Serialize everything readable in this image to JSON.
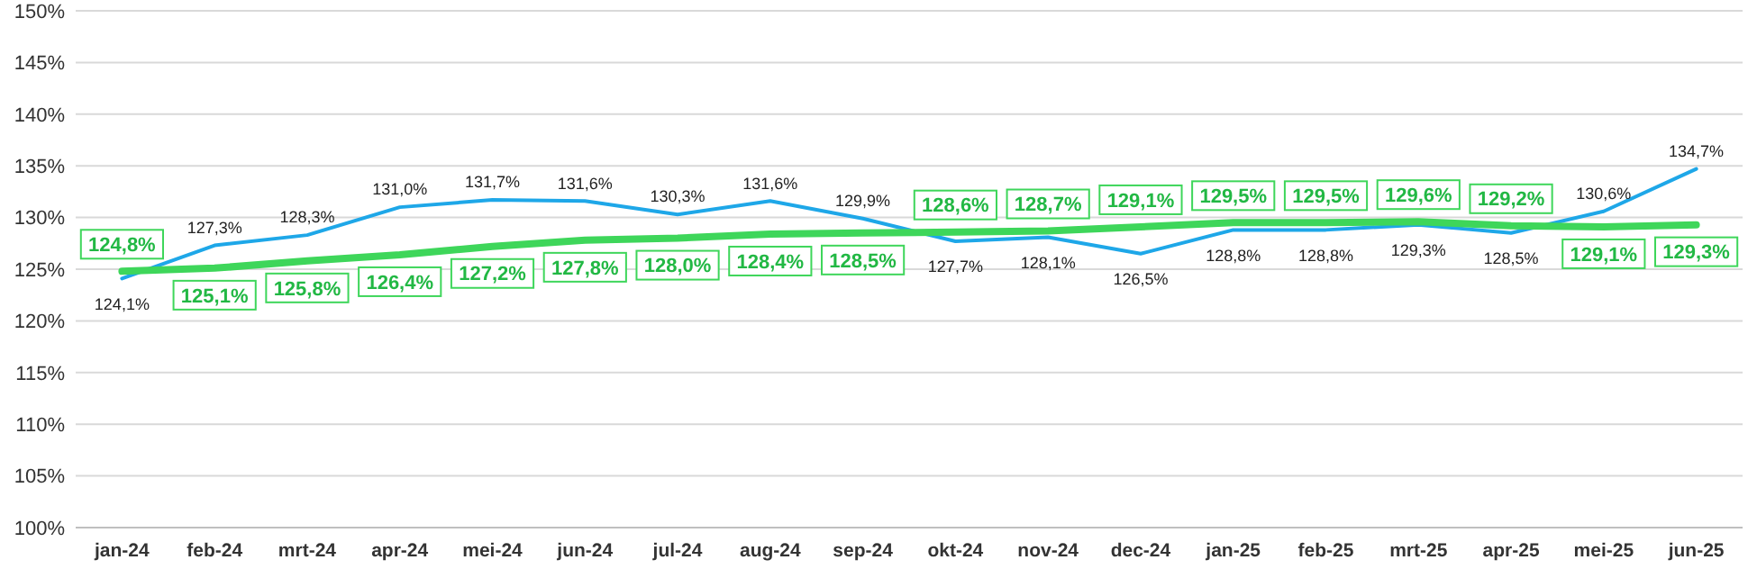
{
  "chart_data": {
    "type": "line",
    "categories": [
      "jan-24",
      "feb-24",
      "mrt-24",
      "apr-24",
      "mei-24",
      "jun-24",
      "jul-24",
      "aug-24",
      "sep-24",
      "okt-24",
      "nov-24",
      "dec-24",
      "jan-25",
      "feb-25",
      "mrt-25",
      "apr-25",
      "mei-25",
      "jun-25"
    ],
    "series": [
      {
        "color": "#1ea7e8",
        "values": [
          124.1,
          127.3,
          128.3,
          131.0,
          131.7,
          131.6,
          130.3,
          131.6,
          129.9,
          127.7,
          128.1,
          126.5,
          128.8,
          128.8,
          129.3,
          128.5,
          130.6,
          134.7
        ],
        "value_labels": [
          "124,1%",
          "127,3%",
          "128,3%",
          "131,0%",
          "131,7%",
          "131,6%",
          "130,3%",
          "131,6%",
          "129,9%",
          "127,7%",
          "128,1%",
          "126,5%",
          "128,8%",
          "128,8%",
          "129,3%",
          "128,5%",
          "130,6%",
          "134,7%"
        ]
      },
      {
        "color": "#3ed65a",
        "values": [
          124.8,
          125.1,
          125.8,
          126.4,
          127.2,
          127.8,
          128.0,
          128.4,
          128.5,
          128.6,
          128.7,
          129.1,
          129.5,
          129.5,
          129.6,
          129.2,
          129.1,
          129.3
        ],
        "value_labels": [
          "124,8%",
          "125,1%",
          "125,8%",
          "126,4%",
          "127,2%",
          "127,8%",
          "128,0%",
          "128,4%",
          "128,5%",
          "128,6%",
          "128,7%",
          "129,1%",
          "129,5%",
          "129,5%",
          "129,6%",
          "129,2%",
          "129,1%",
          "129,3%"
        ]
      }
    ],
    "ylim": [
      100,
      150
    ],
    "yticks": [
      {
        "value": 100,
        "label": "100%"
      },
      {
        "value": 105,
        "label": "105%"
      },
      {
        "value": 110,
        "label": "110%"
      },
      {
        "value": 115,
        "label": "115%"
      },
      {
        "value": 120,
        "label": "120%"
      },
      {
        "value": 125,
        "label": "125%"
      },
      {
        "value": 130,
        "label": "130%"
      },
      {
        "value": 135,
        "label": "135%"
      },
      {
        "value": 140,
        "label": "140%"
      },
      {
        "value": 145,
        "label": "145%"
      },
      {
        "value": 150,
        "label": "150%"
      }
    ],
    "grid": "y",
    "marker": "none",
    "line_style": "solid"
  }
}
